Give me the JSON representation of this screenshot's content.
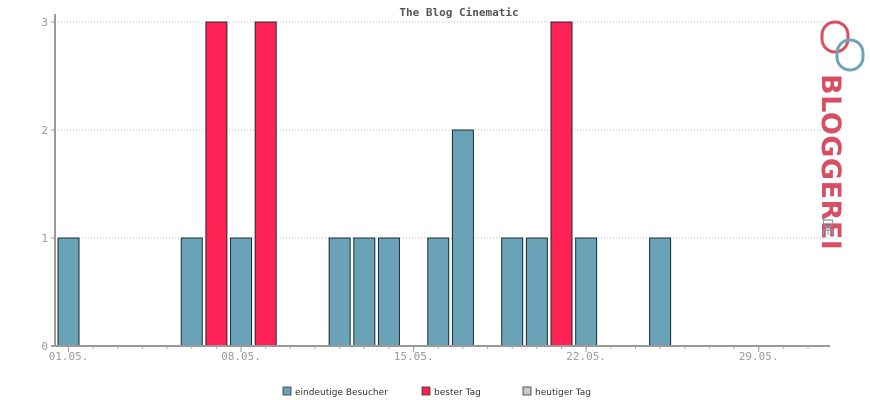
{
  "chart_data": {
    "type": "bar",
    "title": "The Blog Cinematic",
    "xlabel": "",
    "ylabel": "",
    "ylim": [
      0,
      3
    ],
    "yticks": [
      0,
      1,
      2,
      3
    ],
    "x_days": [
      1,
      2,
      3,
      4,
      5,
      6,
      7,
      8,
      9,
      10,
      11,
      12,
      13,
      14,
      15,
      16,
      17,
      18,
      19,
      20,
      21,
      22,
      23,
      24,
      25,
      26,
      27,
      28,
      29,
      30,
      31
    ],
    "xtick_labels": [
      {
        "day": 1,
        "label": "01.05."
      },
      {
        "day": 8,
        "label": "08.05."
      },
      {
        "day": 15,
        "label": "15.05."
      },
      {
        "day": 22,
        "label": "22.05."
      },
      {
        "day": 29,
        "label": "29.05."
      }
    ],
    "series": [
      {
        "name": "eindeutige Besucher",
        "color": "#6aa3b8",
        "points": [
          {
            "day": 1,
            "value": 1
          },
          {
            "day": 6,
            "value": 1
          },
          {
            "day": 8,
            "value": 1
          },
          {
            "day": 12,
            "value": 1
          },
          {
            "day": 13,
            "value": 1
          },
          {
            "day": 14,
            "value": 1
          },
          {
            "day": 16,
            "value": 1
          },
          {
            "day": 17,
            "value": 2
          },
          {
            "day": 19,
            "value": 1
          },
          {
            "day": 20,
            "value": 1
          },
          {
            "day": 22,
            "value": 1
          },
          {
            "day": 25,
            "value": 1
          }
        ]
      },
      {
        "name": "bester Tag",
        "color": "#ff2255",
        "points": [
          {
            "day": 7,
            "value": 3
          },
          {
            "day": 9,
            "value": 3
          },
          {
            "day": 21,
            "value": 3
          }
        ]
      },
      {
        "name": "heutiger Tag",
        "color": "#cccccc",
        "points": []
      }
    ],
    "grid": true,
    "legend_position": "bottom-center"
  },
  "logo": {
    "main": "BLOGGEREI",
    "tld": ".DE",
    "colors": {
      "red": "#d84f63",
      "blue": "#6fa3b8"
    }
  }
}
